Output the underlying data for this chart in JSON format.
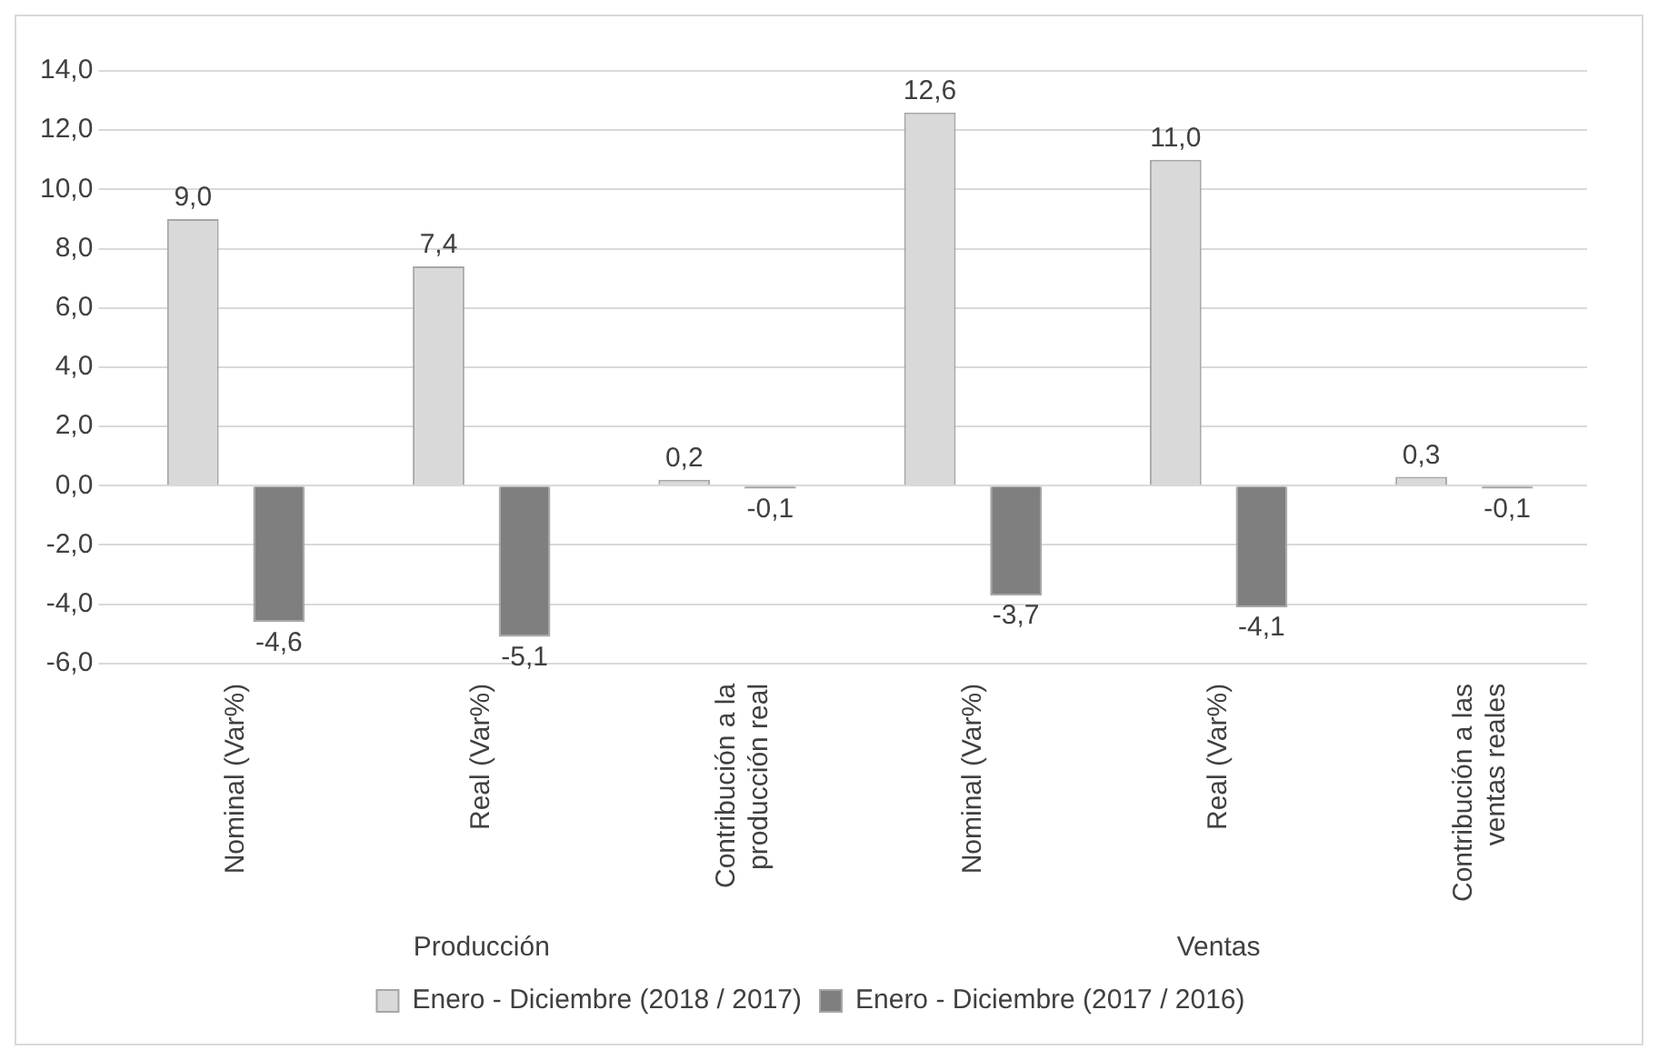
{
  "chart_data": {
    "type": "bar",
    "categories": [
      "Nominal (Var%)",
      "Real (Var%)",
      "Contribución a la producción real",
      "Nominal (Var%)",
      "Real (Var%)",
      "Contribución a las ventas reales"
    ],
    "series": [
      {
        "name": "Enero - Diciembre (2018 / 2017)",
        "color": "#d9d9d9",
        "values": [
          9.0,
          7.4,
          0.2,
          12.6,
          11.0,
          0.3
        ],
        "value_labels": [
          "9,0",
          "7,4",
          "0,2",
          "12,6",
          "11,0",
          "0,3"
        ]
      },
      {
        "name": "Enero - Diciembre (2017 / 2016)",
        "color": "#7f7f7f",
        "values": [
          -4.6,
          -5.1,
          -0.1,
          -3.7,
          -4.1,
          -0.1
        ],
        "value_labels": [
          "-4,6",
          "-5,1",
          "-0,1",
          "-3,7",
          "-4,1",
          "-0,1"
        ]
      }
    ],
    "annotations": [
      "Producción",
      "Ventas"
    ],
    "ylim": [
      -6,
      14
    ],
    "yticks": [
      {
        "value": -6,
        "label": "-6,0"
      },
      {
        "value": -4,
        "label": "-4,0"
      },
      {
        "value": -2,
        "label": "-2,0"
      },
      {
        "value": 0,
        "label": "0,0"
      },
      {
        "value": 2,
        "label": "2,0"
      },
      {
        "value": 4,
        "label": "4,0"
      },
      {
        "value": 6,
        "label": "6,0"
      },
      {
        "value": 8,
        "label": "8,0"
      },
      {
        "value": 10,
        "label": "10,0"
      },
      {
        "value": 12,
        "label": "12,0"
      },
      {
        "value": 14,
        "label": "14,0"
      }
    ],
    "grid": "y",
    "legend": "bottom"
  }
}
